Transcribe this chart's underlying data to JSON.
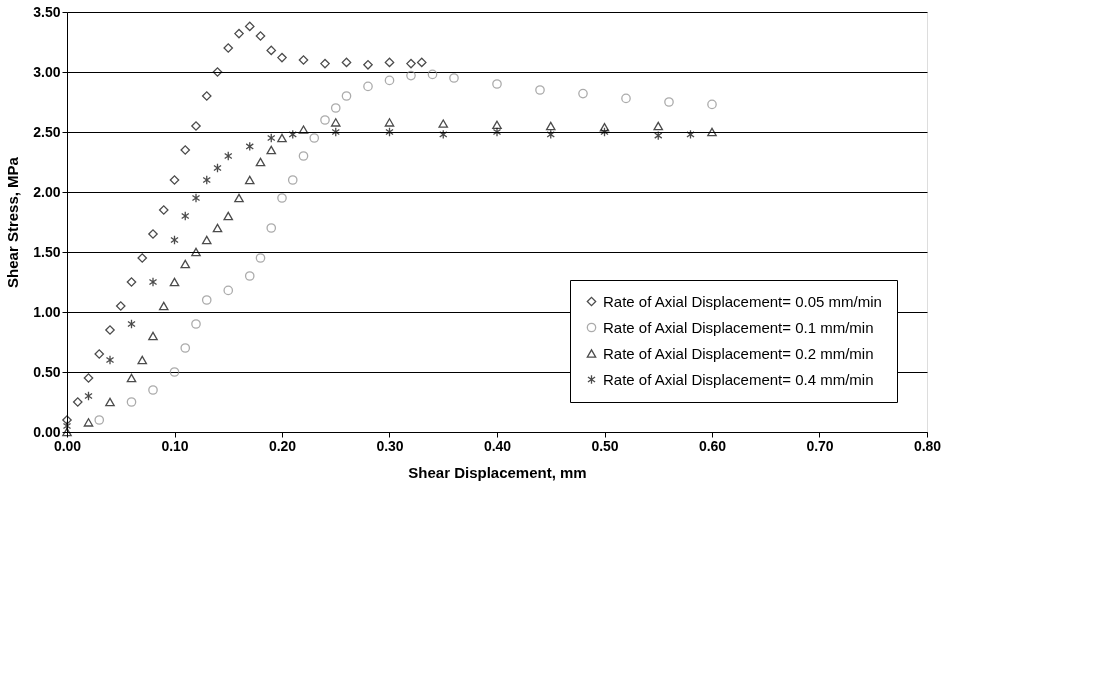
{
  "chart_data": {
    "type": "scatter",
    "xlabel": "Shear Displacement, mm",
    "ylabel": "Shear Stress, MPa",
    "xlim": [
      0,
      0.8
    ],
    "ylim": [
      0,
      3.5
    ],
    "xticks": [
      {
        "value": 0,
        "label": "0.00"
      },
      {
        "value": 0.1,
        "label": "0.10"
      },
      {
        "value": 0.2,
        "label": "0.20"
      },
      {
        "value": 0.3,
        "label": "0.30"
      },
      {
        "value": 0.4,
        "label": "0.40"
      },
      {
        "value": 0.5,
        "label": "0.50"
      },
      {
        "value": 0.6,
        "label": "0.60"
      },
      {
        "value": 0.7,
        "label": "0.70"
      },
      {
        "value": 0.8,
        "label": "0.80"
      }
    ],
    "yticks": [
      {
        "value": 0,
        "label": "0.00"
      },
      {
        "value": 0.5,
        "label": "0.50"
      },
      {
        "value": 1,
        "label": "1.00"
      },
      {
        "value": 1.5,
        "label": "1.50"
      },
      {
        "value": 2,
        "label": "2.00"
      },
      {
        "value": 2.5,
        "label": "2.50"
      },
      {
        "value": 3,
        "label": "3.00"
      },
      {
        "value": 3.5,
        "label": "3.50"
      }
    ],
    "grid": "y",
    "legend": "bottom right",
    "series": [
      {
        "name": "Rate of Axial Displacement= 0.05 mm/min",
        "color": "#000000",
        "marker": "diamond",
        "x": [
          0,
          0.01,
          0.02,
          0.03,
          0.04,
          0.05,
          0.06,
          0.07,
          0.08,
          0.09,
          0.1,
          0.11,
          0.12,
          0.13,
          0.14,
          0.15,
          0.16,
          0.17,
          0.18,
          0.19,
          0.2,
          0.22,
          0.24,
          0.26,
          0.28,
          0.3,
          0.32,
          0.33
        ],
        "values": [
          0.1,
          0.25,
          0.45,
          0.65,
          0.85,
          1.05,
          1.25,
          1.45,
          1.65,
          1.85,
          2.1,
          2.35,
          2.55,
          2.8,
          3.0,
          3.2,
          3.32,
          3.38,
          3.3,
          3.18,
          3.12,
          3.1,
          3.07,
          3.08,
          3.06,
          3.08,
          3.07,
          3.08
        ]
      },
      {
        "name": "Rate of Axial Displacement= 0.1 mm/min",
        "color": "#888888",
        "marker": "circle",
        "x": [
          0.03,
          0.06,
          0.08,
          0.1,
          0.11,
          0.12,
          0.13,
          0.15,
          0.17,
          0.18,
          0.19,
          0.2,
          0.21,
          0.22,
          0.23,
          0.24,
          0.25,
          0.26,
          0.28,
          0.3,
          0.32,
          0.34,
          0.36,
          0.4,
          0.44,
          0.48,
          0.52,
          0.56,
          0.6
        ],
        "values": [
          0.1,
          0.25,
          0.35,
          0.5,
          0.7,
          0.9,
          1.1,
          1.18,
          1.3,
          1.45,
          1.7,
          1.95,
          2.1,
          2.3,
          2.45,
          2.6,
          2.7,
          2.8,
          2.88,
          2.93,
          2.97,
          2.98,
          2.95,
          2.9,
          2.85,
          2.82,
          2.78,
          2.75,
          2.73
        ]
      },
      {
        "name": "Rate of Axial Displacement= 0.2 mm/min",
        "color": "#000000",
        "marker": "triangle",
        "x": [
          0,
          0.02,
          0.04,
          0.06,
          0.07,
          0.08,
          0.09,
          0.1,
          0.11,
          0.12,
          0.13,
          0.14,
          0.15,
          0.16,
          0.17,
          0.18,
          0.19,
          0.2,
          0.22,
          0.25,
          0.3,
          0.35,
          0.4,
          0.45,
          0.5,
          0.55,
          0.6
        ],
        "values": [
          0.0,
          0.08,
          0.25,
          0.45,
          0.6,
          0.8,
          1.05,
          1.25,
          1.4,
          1.5,
          1.6,
          1.7,
          1.8,
          1.95,
          2.1,
          2.25,
          2.35,
          2.45,
          2.52,
          2.58,
          2.58,
          2.57,
          2.56,
          2.55,
          2.54,
          2.55,
          2.5
        ]
      },
      {
        "name": "Rate of Axial Displacement= 0.4 mm/min",
        "color": "#000000",
        "marker": "cross",
        "x": [
          0,
          0.02,
          0.04,
          0.06,
          0.08,
          0.1,
          0.11,
          0.12,
          0.13,
          0.14,
          0.15,
          0.17,
          0.19,
          0.21,
          0.25,
          0.3,
          0.35,
          0.4,
          0.45,
          0.5,
          0.55,
          0.58
        ],
        "values": [
          0.05,
          0.3,
          0.6,
          0.9,
          1.25,
          1.6,
          1.8,
          1.95,
          2.1,
          2.2,
          2.3,
          2.38,
          2.45,
          2.48,
          2.5,
          2.5,
          2.48,
          2.5,
          2.48,
          2.5,
          2.47,
          2.48
        ]
      }
    ]
  }
}
